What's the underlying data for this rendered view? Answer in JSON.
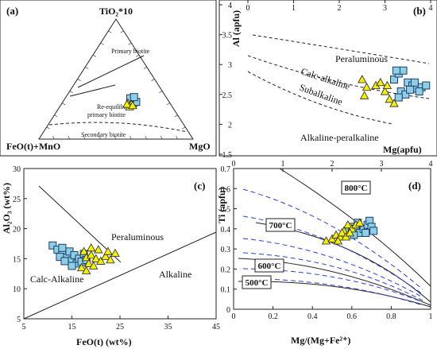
{
  "figure_panels": [
    "(a)",
    "(b)",
    "(c)",
    "(d)"
  ],
  "colors": {
    "square_fill": "#8ecfe6",
    "square_stroke": "#1a3d6d",
    "triangle_fill": "#f5f000",
    "triangle_stroke": "#222222",
    "curve_blue": "#2b3fd6",
    "line": "#222222"
  },
  "chart_data": [
    {
      "panel": "(a)",
      "type": "scatter",
      "title": "",
      "vertex_labels": {
        "top": "TiO₂*10",
        "left": "FeO(t)+MnO",
        "right": "MgO"
      },
      "field_labels": [
        "Primary biotite",
        "Re-equilibrated primary biotite",
        "Secondary biotite"
      ],
      "series": [
        {
          "marker": "square",
          "points": [
            [
              0.65,
              0.32
            ],
            [
              0.67,
              0.33
            ],
            [
              0.66,
              0.3
            ],
            [
              0.69,
              0.31
            ],
            [
              0.64,
              0.34
            ],
            [
              0.68,
              0.35
            ]
          ]
        },
        {
          "marker": "triangle",
          "points": [
            [
              0.63,
              0.28
            ],
            [
              0.61,
              0.3
            ],
            [
              0.64,
              0.29
            ],
            [
              0.62,
              0.27
            ],
            [
              0.6,
              0.29
            ],
            [
              0.65,
              0.28
            ]
          ]
        }
      ]
    },
    {
      "panel": "(b)",
      "type": "scatter",
      "xlabel": "Mg(apfu)",
      "ylabel": "Al (apfu)",
      "xlim": [
        0,
        4
      ],
      "ylim": [
        1.5,
        4
      ],
      "x_ticks": [
        "0",
        "1",
        "2",
        "3",
        "4"
      ],
      "y_ticks": [
        "1.5",
        "2",
        "2.5",
        "3",
        "3.5",
        "4"
      ],
      "field_labels": [
        "Peraluminous",
        "Calc-alkaline",
        "Subalkaline",
        "Alkaline-peralkaline"
      ],
      "series": [
        {
          "marker": "square",
          "points": [
            [
              3.2,
              2.75
            ],
            [
              3.3,
              2.85
            ],
            [
              3.4,
              2.9
            ],
            [
              3.5,
              2.7
            ],
            [
              3.6,
              2.65
            ],
            [
              3.7,
              2.6
            ],
            [
              3.8,
              2.62
            ],
            [
              3.35,
              2.55
            ],
            [
              3.45,
              2.5
            ],
            [
              3.55,
              2.58
            ],
            [
              3.25,
              2.9
            ],
            [
              3.65,
              2.7
            ],
            [
              3.75,
              2.55
            ],
            [
              3.9,
              2.65
            ],
            [
              3.3,
              2.45
            ]
          ]
        },
        {
          "marker": "triangle",
          "points": [
            [
              2.5,
              2.75
            ],
            [
              2.6,
              2.62
            ],
            [
              2.8,
              2.65
            ],
            [
              2.9,
              2.7
            ],
            [
              3.0,
              2.55
            ],
            [
              3.1,
              2.42
            ],
            [
              2.55,
              2.48
            ],
            [
              3.2,
              2.35
            ],
            [
              3.05,
              2.65
            ]
          ]
        }
      ]
    },
    {
      "panel": "(c)",
      "type": "scatter",
      "xlabel": "FeO(t) (wt%)",
      "ylabel": "Al₂O₃ (wt%)",
      "xlim": [
        5,
        45
      ],
      "ylim": [
        5,
        30
      ],
      "x_ticks": [
        "5",
        "15",
        "25",
        "35",
        "45"
      ],
      "y_ticks": [
        "5",
        "10",
        "15",
        "20",
        "25",
        "30"
      ],
      "field_labels": [
        "Peraluminous",
        "Calc-Alkaline",
        "Alkaline"
      ],
      "series": [
        {
          "marker": "square",
          "points": [
            [
              11,
              17.2
            ],
            [
              12,
              16.5
            ],
            [
              13,
              15.8
            ],
            [
              14,
              15.2
            ],
            [
              15,
              14.7
            ],
            [
              12.5,
              15.3
            ],
            [
              13.5,
              14.6
            ],
            [
              14.5,
              16.2
            ],
            [
              15.5,
              15.6
            ],
            [
              16,
              14.2
            ],
            [
              16.5,
              15.0
            ],
            [
              17,
              14.5
            ],
            [
              15,
              13.8
            ],
            [
              17.5,
              15.8
            ],
            [
              18,
              14.8
            ],
            [
              13,
              16.8
            ]
          ]
        },
        {
          "marker": "triangle",
          "points": [
            [
              17.5,
              16.2
            ],
            [
              18,
              15.2
            ],
            [
              19,
              15.6
            ],
            [
              18.5,
              14.2
            ],
            [
              20,
              15.0
            ],
            [
              21,
              14.6
            ],
            [
              22,
              15.4
            ],
            [
              23,
              14.8
            ],
            [
              24,
              15.9
            ],
            [
              20.5,
              16.5
            ],
            [
              19.5,
              13.8
            ],
            [
              17,
              13.5
            ],
            [
              18,
              13.0
            ],
            [
              22.5,
              16.2
            ],
            [
              19,
              16.8
            ]
          ]
        }
      ]
    },
    {
      "panel": "(d)",
      "type": "scatter",
      "xlabel": "Mg/(Mg+Fe²⁺)",
      "ylabel": "Ti (apfu)",
      "xlim": [
        0,
        1
      ],
      "ylim": [
        0,
        0.7
      ],
      "x_ticks": [
        "0",
        "0.2",
        "0.4",
        "0.6",
        "0.8",
        "1"
      ],
      "x2_ticks": [
        "0",
        "1",
        "2",
        "3",
        "4"
      ],
      "y_ticks": [
        "0",
        "0.1",
        "0.2",
        "0.3",
        "0.4",
        "0.5",
        "0.6",
        "0.7"
      ],
      "isotherm_labels": [
        "800°C",
        "700°C",
        "600°C",
        "500°C"
      ],
      "series": [
        {
          "marker": "square",
          "points": [
            [
              0.58,
              0.39
            ],
            [
              0.6,
              0.41
            ],
            [
              0.62,
              0.4
            ],
            [
              0.64,
              0.38
            ],
            [
              0.66,
              0.4
            ],
            [
              0.68,
              0.42
            ],
            [
              0.69,
              0.44
            ],
            [
              0.7,
              0.41
            ],
            [
              0.63,
              0.43
            ],
            [
              0.61,
              0.37
            ],
            [
              0.67,
              0.38
            ],
            [
              0.71,
              0.39
            ]
          ]
        },
        {
          "marker": "triangle",
          "points": [
            [
              0.47,
              0.34
            ],
            [
              0.5,
              0.35
            ],
            [
              0.52,
              0.37
            ],
            [
              0.54,
              0.36
            ],
            [
              0.56,
              0.39
            ],
            [
              0.58,
              0.42
            ],
            [
              0.6,
              0.4
            ],
            [
              0.62,
              0.42
            ],
            [
              0.55,
              0.38
            ],
            [
              0.57,
              0.36
            ],
            [
              0.59,
              0.38
            ],
            [
              0.64,
              0.43
            ],
            [
              0.53,
              0.34
            ]
          ]
        }
      ]
    }
  ]
}
